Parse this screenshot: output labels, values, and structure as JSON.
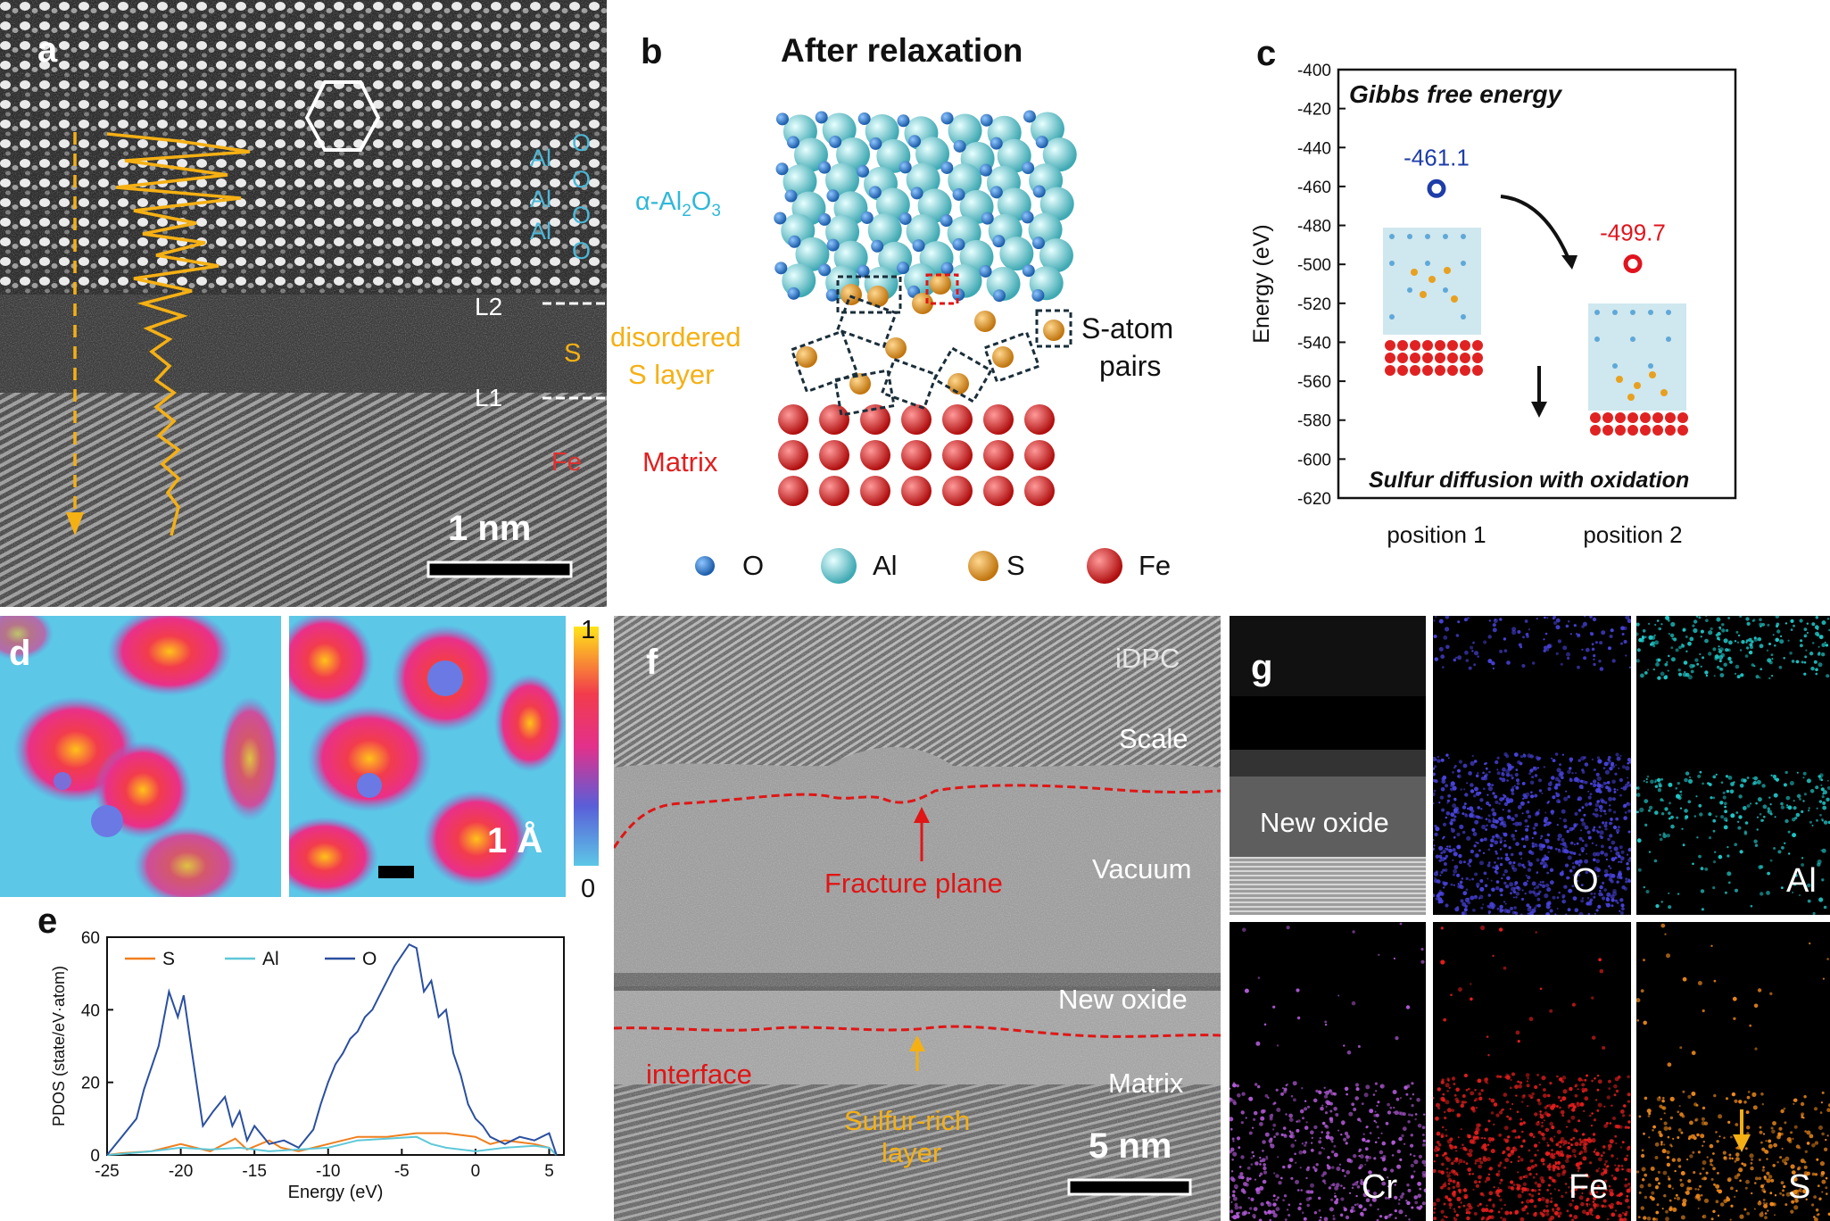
{
  "panel_a": {
    "label": "a",
    "col_al": [
      "Al",
      "Al",
      "Al"
    ],
    "col_o": [
      "O",
      "O",
      "O",
      "O"
    ],
    "alumina": "α-Al",
    "alumina_sub1": "2",
    "alumina_o": "O",
    "alumina_sub2": "3",
    "l2": "L2",
    "l1": "L1",
    "s": "S",
    "disordered_1": "disordered",
    "disordered_2": "S layer",
    "fe": "Fe",
    "matrix": "Matrix",
    "scale": "1 nm"
  },
  "panel_b": {
    "label": "b",
    "title": "After relaxation",
    "pairs_1": "S-atom",
    "pairs_2": "pairs",
    "legend": [
      "O",
      "Al",
      "S",
      "Fe"
    ],
    "colors": {
      "O": "#1f6fc0",
      "Al": "#5fc4cc",
      "S": "#e0921a",
      "Fe": "#d41f1f"
    }
  },
  "panel_c": {
    "label": "c",
    "title": "Gibbs free energy",
    "subtitle": "Sulfur diffusion with oxidation",
    "ylabel": "Energy (eV)"
  },
  "chart_data": [
    {
      "type": "scatter",
      "title": "Gibbs free energy",
      "ylabel": "Energy (eV)",
      "categories": [
        "position 1",
        "position 2"
      ],
      "values": [
        -461.1,
        -499.7
      ],
      "value_labels": [
        "-461.1",
        "-499.7"
      ],
      "point_colors": [
        "#1e3da8",
        "#e0141e"
      ],
      "ylim": [
        -620,
        -400
      ],
      "yticks": [
        -400,
        -420,
        -440,
        -460,
        -480,
        -500,
        -520,
        -540,
        -560,
        -580,
        -600,
        -620
      ],
      "grid": false
    },
    {
      "type": "line",
      "xlabel": "Energy (eV)",
      "ylabel": "PDOS (state/eV·atom)",
      "xlim": [
        -25,
        6
      ],
      "ylim": [
        0,
        60
      ],
      "xticks": [
        -25,
        -20,
        -15,
        -10,
        -5,
        0,
        5
      ],
      "yticks": [
        0,
        20,
        40,
        60
      ],
      "legend_position": "top-left",
      "series": [
        {
          "name": "S",
          "color": "#f07f1e",
          "x": [
            -25,
            -24,
            -22,
            -21,
            -20,
            -18,
            -16.3,
            -15.5,
            -14,
            -13.2,
            -12,
            -11,
            -10,
            -9,
            -8,
            -6,
            -4,
            -2,
            0,
            1,
            2,
            3,
            4,
            5,
            5.5
          ],
          "y": [
            0,
            0.5,
            1,
            2,
            3,
            1,
            4.5,
            1.5,
            4,
            2,
            1,
            2,
            3,
            4,
            5,
            5,
            6,
            6,
            5,
            3,
            4,
            3.5,
            3,
            2,
            0
          ]
        },
        {
          "name": "Al",
          "color": "#5ec8d8",
          "x": [
            -25,
            -24,
            -22,
            -20,
            -18,
            -16,
            -14,
            -12,
            -10,
            -8,
            -6,
            -4,
            -3,
            -2,
            0,
            2,
            4,
            5,
            5.5
          ],
          "y": [
            0,
            0.3,
            1,
            2,
            1.5,
            2,
            1,
            1.5,
            2,
            4,
            4.5,
            5,
            3,
            2,
            1,
            2,
            2.5,
            2,
            0
          ]
        },
        {
          "name": "O",
          "color": "#2a4fa0",
          "x": [
            -25,
            -24,
            -23,
            -22.5,
            -21.5,
            -20.8,
            -20.2,
            -19.8,
            -19.3,
            -18.5,
            -17.8,
            -17,
            -16.5,
            -16,
            -15.5,
            -15,
            -14,
            -13,
            -12,
            -11,
            -10.5,
            -10,
            -9.5,
            -9,
            -8.5,
            -8,
            -7.5,
            -7,
            -6.5,
            -6,
            -5.5,
            -5,
            -4.5,
            -4,
            -3.5,
            -3,
            -2.5,
            -2,
            -1.5,
            -1,
            -0.5,
            0,
            0.5,
            1,
            2,
            3,
            4,
            5,
            5.5
          ],
          "y": [
            0,
            5,
            10,
            18,
            30,
            45,
            38,
            44,
            30,
            8,
            12,
            16,
            8,
            12,
            4,
            8,
            3,
            4,
            2,
            7,
            14,
            20,
            25,
            28,
            32,
            34,
            38,
            40,
            44,
            48,
            52,
            55,
            58,
            57,
            45,
            48,
            38,
            40,
            28,
            22,
            14,
            10,
            8,
            5,
            3,
            5,
            4,
            6,
            0
          ]
        }
      ]
    }
  ],
  "panel_d": {
    "label": "d",
    "scale": "1 Å",
    "cb_max": "1",
    "cb_min": "0"
  },
  "panel_e": {
    "label": "e"
  },
  "panel_f": {
    "label": "f",
    "idpc": "iDPC",
    "scale_layer": "Scale",
    "fracture": "Fracture plane",
    "vacuum": "Vacuum",
    "new_oxide": "New oxide",
    "interface": "interface",
    "matrix": "Matrix",
    "sulfur_1": "Sulfur-rich",
    "sulfur_2": "layer",
    "scale": "5 nm"
  },
  "panel_g": {
    "label": "g",
    "new_oxide": "New oxide",
    "O": "O",
    "Al": "Al",
    "Cr": "Cr",
    "Fe": "Fe",
    "S": "S"
  }
}
